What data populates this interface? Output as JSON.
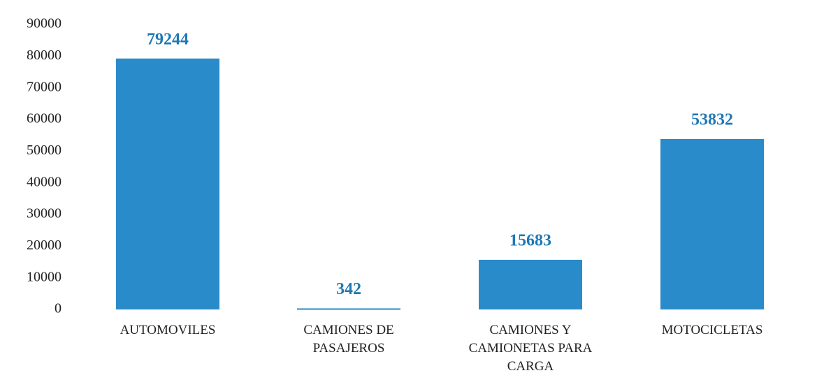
{
  "chart_data": {
    "type": "bar",
    "categories": [
      "AUTOMOVILES",
      "CAMIONES DE PASAJEROS",
      "CAMIONES Y CAMIONETAS PARA CARGA",
      "MOTOCICLETAS"
    ],
    "values": [
      79244,
      342,
      15683,
      53832
    ],
    "color": "#2a8bcb",
    "ylim": [
      0,
      90000
    ],
    "yticks": [
      0,
      10000,
      20000,
      30000,
      40000,
      50000,
      60000,
      70000,
      80000,
      90000
    ],
    "grid": false
  }
}
